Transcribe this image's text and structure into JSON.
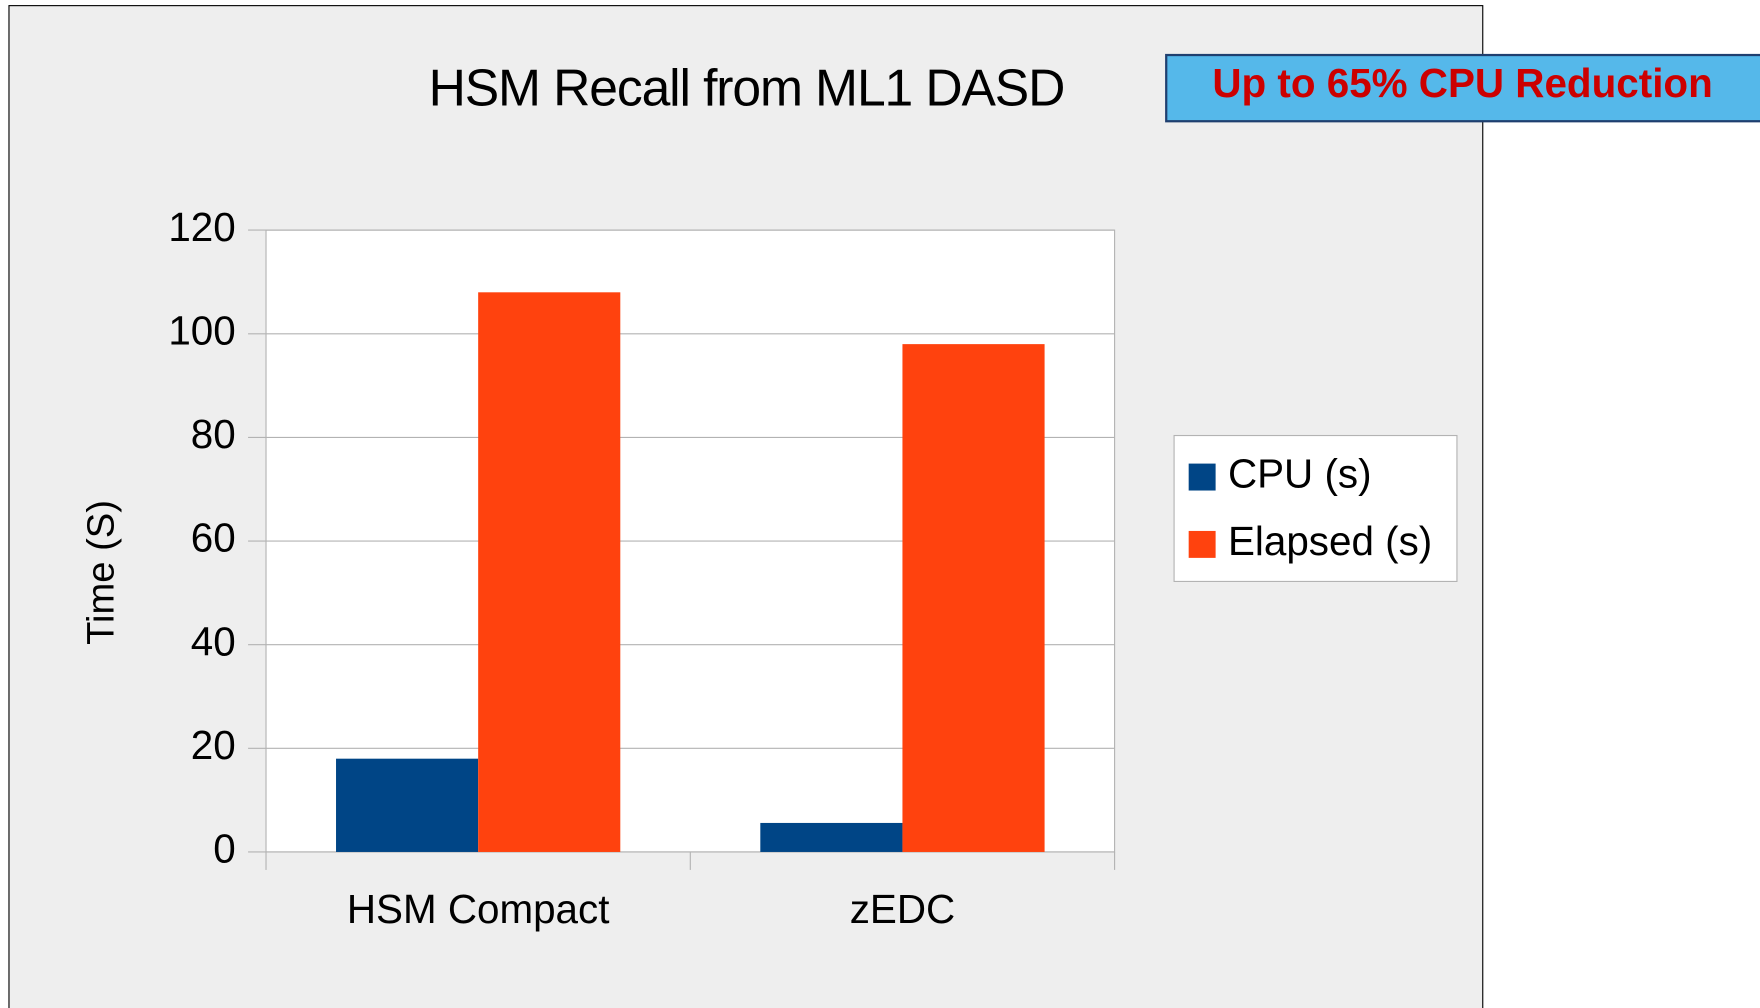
{
  "chart_data": {
    "type": "bar",
    "title": "HSM Recall from ML1 DASD",
    "annotation": "Up to 65% CPU Reduction",
    "y_label": "Time (S)",
    "categories": [
      "HSM Compact",
      "zEDC"
    ],
    "series": [
      {
        "name": "CPU (s)",
        "color": "#004586",
        "values": [
          18,
          5.6
        ]
      },
      {
        "name": "Elapsed (s)",
        "color": "#ff420e",
        "values": [
          108,
          98
        ]
      }
    ],
    "ylim": [
      0,
      120
    ],
    "yticks": [
      0,
      20,
      40,
      60,
      80,
      100,
      120
    ],
    "grid": true,
    "legend": "right"
  }
}
